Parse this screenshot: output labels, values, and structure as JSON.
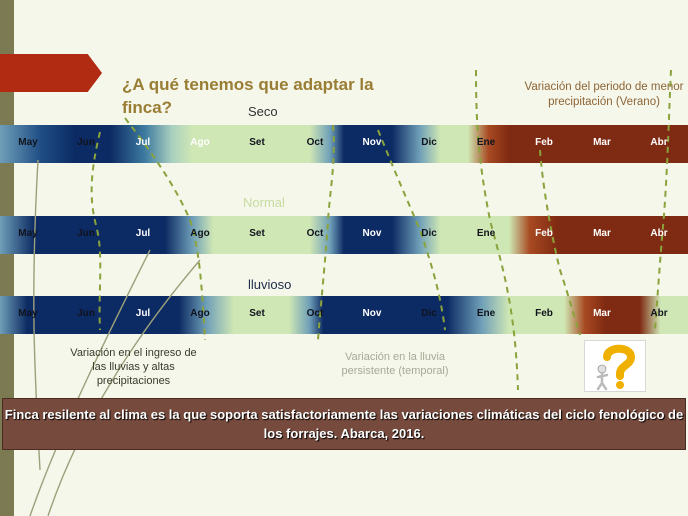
{
  "title": "¿A qué tenemos que adaptar la finca?",
  "note_top": "Variación del periodo de menor precipitación (Verano)",
  "rows": [
    {
      "label": "Seco",
      "label_color": "#333333",
      "months": [
        "May",
        "Jun",
        "Jul",
        "Ago",
        "Set",
        "Oct",
        "Nov",
        "Dic",
        "Ene",
        "Feb",
        "Mar",
        "Abr"
      ]
    },
    {
      "label": "Normal",
      "label_color": "#c7dca0",
      "months": [
        "May",
        "Jun",
        "Jul",
        "Ago",
        "Set",
        "Oct",
        "Nov",
        "Dic",
        "Ene",
        "Feb",
        "Mar",
        "Abr"
      ]
    },
    {
      "label": "lluvioso",
      "label_color": "#1e2c48",
      "months": [
        "May",
        "Jun",
        "Jul",
        "Ago",
        "Set",
        "Oct",
        "Nov",
        "Dic",
        "Ene",
        "Feb",
        "Mar",
        "Abr"
      ]
    }
  ],
  "note_left": "Variación en el ingreso de las lluvias y altas precipitaciones",
  "note_middle": "Variación en la lluvia persistente (temporal)",
  "banner": "Finca resilente al clima es la que soporta satisfactoriamente las variaciones climáticas del ciclo fenológico de los forrajes. Abarca, 2016.",
  "colors": {
    "rainy": "#0c2a63",
    "transition": "#6f9fb8",
    "dry": "#cfe7b4",
    "very_dry": "#7f2a12",
    "guide": "#8aa33c"
  },
  "icon": "question-mark-figure-icon"
}
